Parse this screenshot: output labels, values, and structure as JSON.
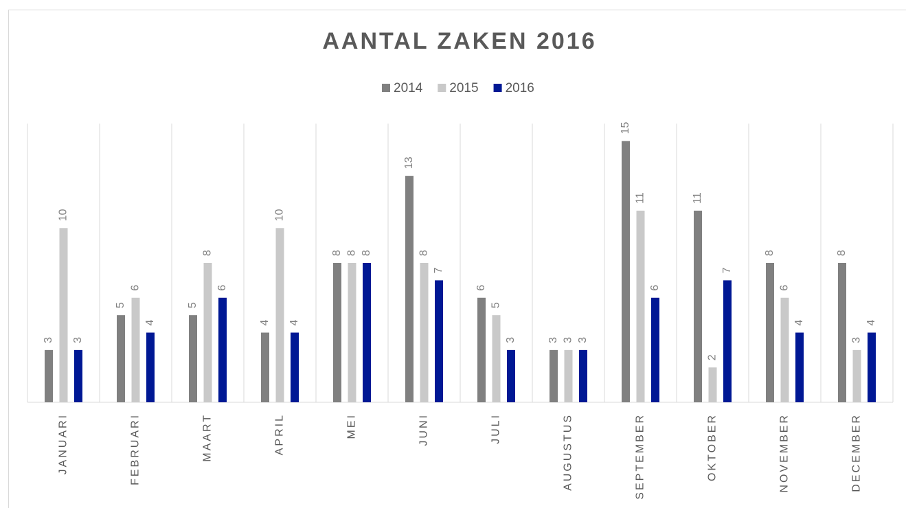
{
  "chart_data": {
    "type": "bar",
    "title": "AANTAL ZAKEN 2016",
    "categories": [
      "JANUARI",
      "FEBRUARI",
      "MAART",
      "APRIL",
      "MEI",
      "JUNI",
      "JULI",
      "AUGUSTUS",
      "SEPTEMBER",
      "OKTOBER",
      "NOVEMBER",
      "DECEMBER"
    ],
    "series": [
      {
        "name": "2014",
        "color": "#808080",
        "values": [
          3,
          5,
          5,
          4,
          8,
          13,
          6,
          3,
          15,
          11,
          8,
          8
        ]
      },
      {
        "name": "2015",
        "color": "#c9c9c9",
        "values": [
          10,
          6,
          8,
          10,
          8,
          8,
          5,
          3,
          11,
          2,
          6,
          3
        ]
      },
      {
        "name": "2016",
        "color": "#001894",
        "values": [
          3,
          4,
          6,
          4,
          8,
          7,
          3,
          3,
          6,
          7,
          4,
          4
        ]
      }
    ],
    "ylim": [
      0,
      16
    ],
    "legend": "top"
  }
}
